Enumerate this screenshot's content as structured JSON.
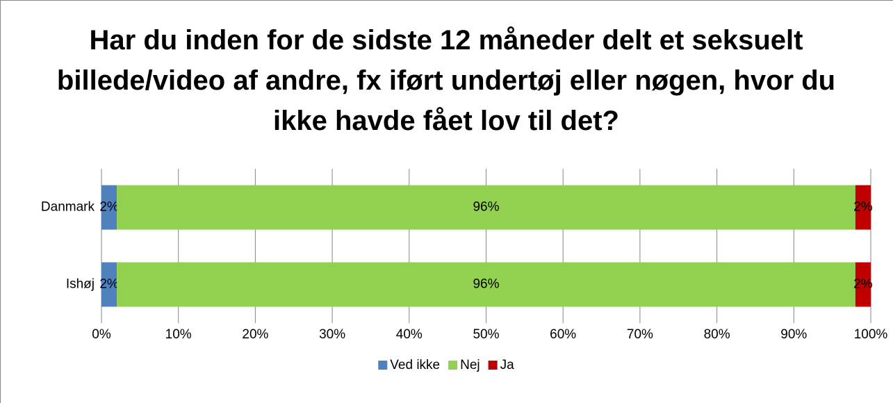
{
  "chart_data": {
    "type": "stacked_barh",
    "title": "Har du inden for de sidste 12 måneder delt et seksuelt billede/video af andre, fx iført undertøj eller nøgen, hvor du ikke havde fået lov til det?",
    "categories": [
      "Danmark",
      "Ishøj"
    ],
    "series": [
      {
        "name": "Ved ikke",
        "color": "#4f81bd",
        "values": [
          2,
          2
        ],
        "value_labels": [
          "2%",
          "2%"
        ]
      },
      {
        "name": "Nej",
        "color": "#92d050",
        "values": [
          96,
          96
        ],
        "value_labels": [
          "96%",
          "96%"
        ]
      },
      {
        "name": "Ja",
        "color": "#c00000",
        "values": [
          2,
          2
        ],
        "value_labels": [
          "2%",
          "2%"
        ]
      }
    ],
    "xlim": [
      0,
      100
    ],
    "xticks": [
      {
        "value": 0,
        "label": "0%"
      },
      {
        "value": 10,
        "label": "10%"
      },
      {
        "value": 20,
        "label": "20%"
      },
      {
        "value": 30,
        "label": "30%"
      },
      {
        "value": 40,
        "label": "40%"
      },
      {
        "value": 50,
        "label": "50%"
      },
      {
        "value": 60,
        "label": "60%"
      },
      {
        "value": 70,
        "label": "70%"
      },
      {
        "value": 80,
        "label": "80%"
      },
      {
        "value": 90,
        "label": "90%"
      },
      {
        "value": 100,
        "label": "100%"
      }
    ],
    "grid": true,
    "legend": "bottom"
  }
}
